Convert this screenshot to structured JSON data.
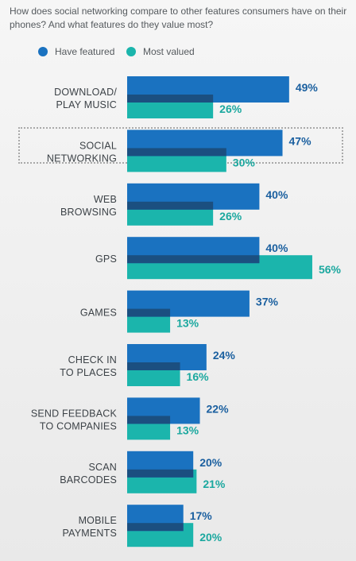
{
  "question": "How does social networking compare to other features consumers have on their phones? And what features do they value most?",
  "colors": {
    "have_featured": "#1a72c0",
    "have_featured_overlap": "#1b4f80",
    "most_valued": "#1bb5ac",
    "have_featured_text": "#1a5f9f",
    "most_valued_text": "#1ba89f"
  },
  "chart_data": {
    "type": "bar",
    "orientation": "horizontal",
    "unit": "%",
    "legend_position": "top-left",
    "highlighted_category": 1,
    "categories": [
      [
        "DOWNLOAD/",
        "PLAY MUSIC"
      ],
      [
        "SOCIAL",
        "NETWORKING"
      ],
      [
        "WEB",
        "BROWSING"
      ],
      [
        "GPS"
      ],
      [
        "GAMES"
      ],
      [
        "CHECK IN",
        "TO PLACES"
      ],
      [
        "SEND FEEDBACK",
        "TO COMPANIES"
      ],
      [
        "SCAN",
        "BARCODES"
      ],
      [
        "MOBILE",
        "PAYMENTS"
      ]
    ],
    "series": [
      {
        "name": "Have featured",
        "values": [
          49,
          47,
          40,
          40,
          37,
          24,
          22,
          20,
          17
        ]
      },
      {
        "name": "Most valued",
        "values": [
          26,
          30,
          26,
          56,
          13,
          16,
          13,
          21,
          20
        ]
      }
    ]
  }
}
